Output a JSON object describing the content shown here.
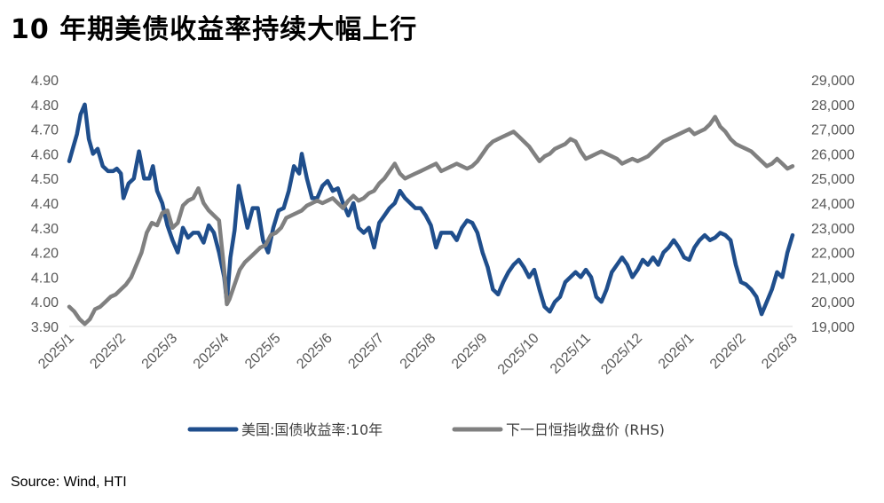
{
  "title": "10 年期美债收益率持续大幅上行",
  "source": "Source: Wind, HTI",
  "chart_data": {
    "type": "line",
    "x": [
      "2025/1",
      "2025/2",
      "2025/3",
      "2025/4",
      "2025/5",
      "2025/6",
      "2025/7",
      "2025/8",
      "2025/9",
      "2025/10",
      "2025/11",
      "2025/12",
      "2026/1",
      "2026/2",
      "2026/3"
    ],
    "ylim_left": [
      3.9,
      4.9
    ],
    "yticks_left": [
      "4.90",
      "4.80",
      "4.70",
      "4.60",
      "4.50",
      "4.40",
      "4.30",
      "4.20",
      "4.10",
      "4.00",
      "3.90"
    ],
    "ylim_right": [
      19000,
      29000
    ],
    "yticks_right": [
      "29,000",
      "28,000",
      "27,000",
      "26,000",
      "25,000",
      "24,000",
      "23,000",
      "22,000",
      "21,000",
      "20,000",
      "19,000"
    ],
    "series": [
      {
        "name": "美国:国债收益率:10年",
        "axis": "left",
        "color": "#1f4e8c",
        "points": [
          [
            0,
            4.57
          ],
          [
            0.08,
            4.63
          ],
          [
            0.15,
            4.68
          ],
          [
            0.22,
            4.76
          ],
          [
            0.3,
            4.8
          ],
          [
            0.38,
            4.66
          ],
          [
            0.46,
            4.6
          ],
          [
            0.55,
            4.62
          ],
          [
            0.65,
            4.55
          ],
          [
            0.75,
            4.53
          ],
          [
            0.85,
            4.53
          ],
          [
            0.92,
            4.54
          ],
          [
            1.0,
            4.52
          ],
          [
            1.05,
            4.42
          ],
          [
            1.15,
            4.48
          ],
          [
            1.25,
            4.5
          ],
          [
            1.35,
            4.61
          ],
          [
            1.45,
            4.5
          ],
          [
            1.55,
            4.5
          ],
          [
            1.62,
            4.55
          ],
          [
            1.7,
            4.45
          ],
          [
            1.8,
            4.4
          ],
          [
            1.9,
            4.31
          ],
          [
            2.0,
            4.25
          ],
          [
            2.1,
            4.2
          ],
          [
            2.2,
            4.3
          ],
          [
            2.3,
            4.26
          ],
          [
            2.4,
            4.28
          ],
          [
            2.5,
            4.28
          ],
          [
            2.6,
            4.24
          ],
          [
            2.7,
            4.31
          ],
          [
            2.8,
            4.28
          ],
          [
            2.9,
            4.2
          ],
          [
            3.0,
            4.1
          ],
          [
            3.05,
            4.0
          ],
          [
            3.12,
            4.18
          ],
          [
            3.2,
            4.29
          ],
          [
            3.28,
            4.47
          ],
          [
            3.35,
            4.4
          ],
          [
            3.45,
            4.3
          ],
          [
            3.55,
            4.38
          ],
          [
            3.65,
            4.38
          ],
          [
            3.75,
            4.25
          ],
          [
            3.85,
            4.2
          ],
          [
            3.95,
            4.3
          ],
          [
            4.05,
            4.37
          ],
          [
            4.15,
            4.38
          ],
          [
            4.25,
            4.45
          ],
          [
            4.35,
            4.55
          ],
          [
            4.45,
            4.52
          ],
          [
            4.5,
            4.6
          ],
          [
            4.6,
            4.5
          ],
          [
            4.7,
            4.42
          ],
          [
            4.8,
            4.42
          ],
          [
            4.9,
            4.47
          ],
          [
            5.0,
            4.49
          ],
          [
            5.1,
            4.45
          ],
          [
            5.2,
            4.46
          ],
          [
            5.3,
            4.4
          ],
          [
            5.4,
            4.35
          ],
          [
            5.5,
            4.4
          ],
          [
            5.6,
            4.3
          ],
          [
            5.7,
            4.28
          ],
          [
            5.8,
            4.3
          ],
          [
            5.9,
            4.22
          ],
          [
            6.0,
            4.32
          ],
          [
            6.1,
            4.35
          ],
          [
            6.2,
            4.38
          ],
          [
            6.3,
            4.4
          ],
          [
            6.4,
            4.45
          ],
          [
            6.5,
            4.42
          ],
          [
            6.6,
            4.4
          ],
          [
            6.7,
            4.38
          ],
          [
            6.8,
            4.38
          ],
          [
            6.9,
            4.35
          ],
          [
            7.0,
            4.31
          ],
          [
            7.1,
            4.22
          ],
          [
            7.2,
            4.28
          ],
          [
            7.3,
            4.28
          ],
          [
            7.4,
            4.28
          ],
          [
            7.5,
            4.25
          ],
          [
            7.6,
            4.3
          ],
          [
            7.7,
            4.33
          ],
          [
            7.8,
            4.32
          ],
          [
            7.9,
            4.28
          ],
          [
            8.0,
            4.2
          ],
          [
            8.1,
            4.14
          ],
          [
            8.2,
            4.05
          ],
          [
            8.3,
            4.03
          ],
          [
            8.4,
            4.08
          ],
          [
            8.5,
            4.12
          ],
          [
            8.6,
            4.15
          ],
          [
            8.7,
            4.17
          ],
          [
            8.8,
            4.14
          ],
          [
            8.9,
            4.1
          ],
          [
            9.0,
            4.13
          ],
          [
            9.1,
            4.05
          ],
          [
            9.2,
            3.98
          ],
          [
            9.3,
            3.96
          ],
          [
            9.4,
            4.0
          ],
          [
            9.5,
            4.02
          ],
          [
            9.6,
            4.08
          ],
          [
            9.7,
            4.1
          ],
          [
            9.8,
            4.12
          ],
          [
            9.9,
            4.1
          ],
          [
            10.0,
            4.13
          ],
          [
            10.1,
            4.1
          ],
          [
            10.2,
            4.02
          ],
          [
            10.3,
            4.0
          ],
          [
            10.4,
            4.05
          ],
          [
            10.5,
            4.12
          ],
          [
            10.6,
            4.15
          ],
          [
            10.7,
            4.18
          ],
          [
            10.8,
            4.15
          ],
          [
            10.9,
            4.1
          ],
          [
            11.0,
            4.13
          ],
          [
            11.1,
            4.17
          ],
          [
            11.2,
            4.15
          ],
          [
            11.3,
            4.18
          ],
          [
            11.4,
            4.15
          ],
          [
            11.5,
            4.2
          ],
          [
            11.6,
            4.22
          ],
          [
            11.7,
            4.25
          ],
          [
            11.8,
            4.22
          ],
          [
            11.9,
            4.18
          ],
          [
            12.0,
            4.17
          ],
          [
            12.1,
            4.22
          ],
          [
            12.2,
            4.25
          ],
          [
            12.3,
            4.27
          ],
          [
            12.4,
            4.25
          ],
          [
            12.5,
            4.26
          ],
          [
            12.6,
            4.28
          ],
          [
            12.7,
            4.27
          ],
          [
            12.8,
            4.25
          ],
          [
            12.9,
            4.15
          ],
          [
            13.0,
            4.08
          ],
          [
            13.1,
            4.07
          ],
          [
            13.2,
            4.05
          ],
          [
            13.3,
            4.02
          ],
          [
            13.4,
            3.95
          ],
          [
            13.5,
            4.0
          ],
          [
            13.6,
            4.05
          ],
          [
            13.7,
            4.12
          ],
          [
            13.8,
            4.1
          ],
          [
            13.9,
            4.2
          ],
          [
            14.0,
            4.27
          ]
        ]
      },
      {
        "name": "下一日恒指收盘价 (RHS)",
        "axis": "right",
        "color": "#808080",
        "points": [
          [
            0,
            19800
          ],
          [
            0.1,
            19600
          ],
          [
            0.2,
            19300
          ],
          [
            0.3,
            19100
          ],
          [
            0.4,
            19300
          ],
          [
            0.5,
            19700
          ],
          [
            0.6,
            19800
          ],
          [
            0.7,
            20000
          ],
          [
            0.8,
            20200
          ],
          [
            0.9,
            20300
          ],
          [
            1.0,
            20500
          ],
          [
            1.1,
            20700
          ],
          [
            1.2,
            21000
          ],
          [
            1.3,
            21500
          ],
          [
            1.4,
            22000
          ],
          [
            1.5,
            22800
          ],
          [
            1.6,
            23200
          ],
          [
            1.7,
            23100
          ],
          [
            1.8,
            23600
          ],
          [
            1.9,
            23700
          ],
          [
            2.0,
            23000
          ],
          [
            2.1,
            23200
          ],
          [
            2.2,
            23900
          ],
          [
            2.3,
            24100
          ],
          [
            2.4,
            24200
          ],
          [
            2.5,
            24600
          ],
          [
            2.6,
            24000
          ],
          [
            2.7,
            23700
          ],
          [
            2.8,
            23500
          ],
          [
            2.9,
            23300
          ],
          [
            3.0,
            21300
          ],
          [
            3.05,
            19900
          ],
          [
            3.1,
            20100
          ],
          [
            3.2,
            20700
          ],
          [
            3.3,
            21300
          ],
          [
            3.4,
            21600
          ],
          [
            3.5,
            21800
          ],
          [
            3.6,
            22000
          ],
          [
            3.7,
            22200
          ],
          [
            3.8,
            22300
          ],
          [
            3.9,
            22700
          ],
          [
            4.0,
            22800
          ],
          [
            4.1,
            23000
          ],
          [
            4.2,
            23400
          ],
          [
            4.3,
            23500
          ],
          [
            4.4,
            23600
          ],
          [
            4.5,
            23700
          ],
          [
            4.6,
            23900
          ],
          [
            4.7,
            24000
          ],
          [
            4.8,
            24100
          ],
          [
            4.9,
            24000
          ],
          [
            5.0,
            24100
          ],
          [
            5.1,
            24200
          ],
          [
            5.2,
            24000
          ],
          [
            5.3,
            23800
          ],
          [
            5.4,
            24100
          ],
          [
            5.5,
            24300
          ],
          [
            5.6,
            24100
          ],
          [
            5.7,
            24200
          ],
          [
            5.8,
            24400
          ],
          [
            5.9,
            24500
          ],
          [
            6.0,
            24800
          ],
          [
            6.1,
            25000
          ],
          [
            6.2,
            25300
          ],
          [
            6.3,
            25600
          ],
          [
            6.4,
            25200
          ],
          [
            6.5,
            25000
          ],
          [
            6.6,
            25100
          ],
          [
            6.7,
            25200
          ],
          [
            6.8,
            25300
          ],
          [
            6.9,
            25400
          ],
          [
            7.0,
            25500
          ],
          [
            7.1,
            25600
          ],
          [
            7.2,
            25300
          ],
          [
            7.3,
            25400
          ],
          [
            7.4,
            25500
          ],
          [
            7.5,
            25600
          ],
          [
            7.6,
            25500
          ],
          [
            7.7,
            25400
          ],
          [
            7.8,
            25500
          ],
          [
            7.9,
            25700
          ],
          [
            8.0,
            26000
          ],
          [
            8.1,
            26300
          ],
          [
            8.2,
            26500
          ],
          [
            8.3,
            26600
          ],
          [
            8.4,
            26700
          ],
          [
            8.5,
            26800
          ],
          [
            8.6,
            26900
          ],
          [
            8.7,
            26700
          ],
          [
            8.8,
            26500
          ],
          [
            8.9,
            26300
          ],
          [
            9.0,
            26000
          ],
          [
            9.1,
            25700
          ],
          [
            9.2,
            25900
          ],
          [
            9.3,
            26000
          ],
          [
            9.4,
            26200
          ],
          [
            9.5,
            26300
          ],
          [
            9.6,
            26400
          ],
          [
            9.7,
            26600
          ],
          [
            9.8,
            26500
          ],
          [
            9.9,
            26100
          ],
          [
            10.0,
            25800
          ],
          [
            10.1,
            25900
          ],
          [
            10.2,
            26000
          ],
          [
            10.3,
            26100
          ],
          [
            10.4,
            26000
          ],
          [
            10.5,
            25900
          ],
          [
            10.6,
            25800
          ],
          [
            10.7,
            25600
          ],
          [
            10.8,
            25700
          ],
          [
            10.9,
            25800
          ],
          [
            11.0,
            25700
          ],
          [
            11.1,
            25800
          ],
          [
            11.2,
            25900
          ],
          [
            11.3,
            26100
          ],
          [
            11.4,
            26300
          ],
          [
            11.5,
            26500
          ],
          [
            11.6,
            26600
          ],
          [
            11.7,
            26700
          ],
          [
            11.8,
            26800
          ],
          [
            11.9,
            26900
          ],
          [
            12.0,
            27000
          ],
          [
            12.1,
            26800
          ],
          [
            12.2,
            26900
          ],
          [
            12.3,
            27000
          ],
          [
            12.4,
            27200
          ],
          [
            12.5,
            27500
          ],
          [
            12.6,
            27100
          ],
          [
            12.7,
            26900
          ],
          [
            12.8,
            26600
          ],
          [
            12.9,
            26400
          ],
          [
            13.0,
            26300
          ],
          [
            13.1,
            26200
          ],
          [
            13.2,
            26100
          ],
          [
            13.3,
            25900
          ],
          [
            13.4,
            25700
          ],
          [
            13.5,
            25500
          ],
          [
            13.6,
            25600
          ],
          [
            13.7,
            25800
          ],
          [
            13.8,
            25600
          ],
          [
            13.9,
            25400
          ],
          [
            14.0,
            25500
          ]
        ]
      }
    ]
  }
}
